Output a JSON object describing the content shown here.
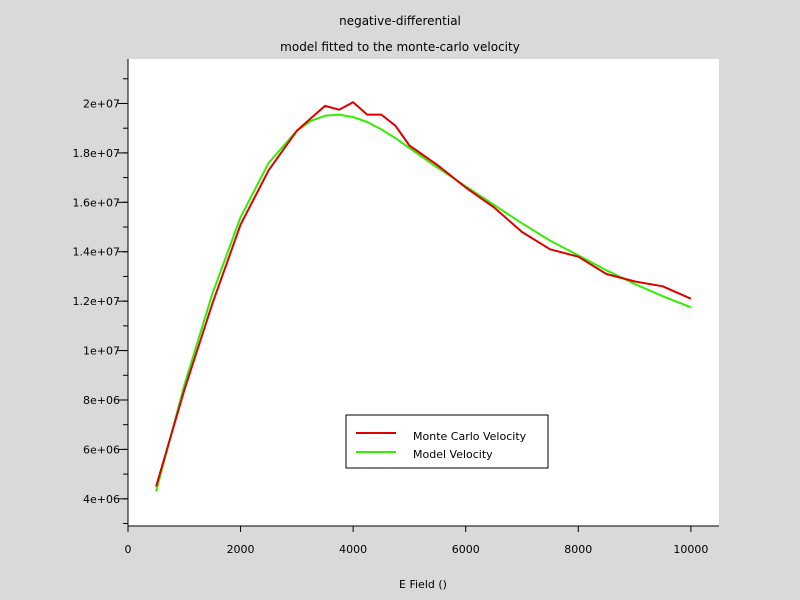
{
  "chart_data": {
    "type": "line",
    "title": "negative-differential",
    "subtitle": "model fitted to the monte-carlo velocity",
    "xlabel": "E Field ()",
    "ylabel": "",
    "xlim": [
      0,
      10500
    ],
    "ylim": [
      2900000,
      21800000
    ],
    "x_ticks": [
      0,
      2000,
      4000,
      6000,
      8000,
      10000
    ],
    "x_tick_labels": [
      "0",
      "2000",
      "4000",
      "6000",
      "8000",
      "10000"
    ],
    "y_ticks": [
      4000000,
      6000000,
      8000000,
      10000000,
      12000000,
      14000000,
      16000000,
      18000000,
      20000000
    ],
    "y_tick_labels": [
      "4e+06",
      "6e+06",
      "8e+06",
      "1e+07",
      "1.2e+07",
      "1.4e+07",
      "1.6e+07",
      "1.8e+07",
      "2e+07"
    ],
    "grid": false,
    "legend_position": "lower-center",
    "series": [
      {
        "name": "Monte Carlo Velocity",
        "color": "#dd0000",
        "x": [
          500,
          1000,
          1500,
          2000,
          2500,
          3000,
          3250,
          3500,
          3750,
          4000,
          4250,
          4500,
          4750,
          5000,
          5500,
          6000,
          6500,
          7000,
          7500,
          8000,
          8500,
          9000,
          9500,
          10000
        ],
        "y": [
          4500000,
          8400000,
          11900000,
          15100000,
          17300000,
          18900000,
          19400000,
          19900000,
          19750000,
          20050000,
          19550000,
          19550000,
          19100000,
          18300000,
          17500000,
          16600000,
          15800000,
          14800000,
          14100000,
          13800000,
          13100000,
          12800000,
          12600000,
          12100000
        ]
      },
      {
        "name": "Model Velocity",
        "color": "#33ee00",
        "x": [
          500,
          1000,
          1500,
          2000,
          2500,
          3000,
          3250,
          3500,
          3750,
          4000,
          4250,
          4500,
          4750,
          5000,
          5500,
          6000,
          6500,
          7000,
          7500,
          8000,
          8500,
          9000,
          9500,
          10000
        ],
        "y": [
          4300000,
          8600000,
          12300000,
          15400000,
          17600000,
          18900000,
          19300000,
          19500000,
          19550000,
          19450000,
          19250000,
          18950000,
          18600000,
          18200000,
          17400000,
          16650000,
          15900000,
          15150000,
          14450000,
          13850000,
          13250000,
          12700000,
          12200000,
          11750000
        ]
      }
    ]
  }
}
